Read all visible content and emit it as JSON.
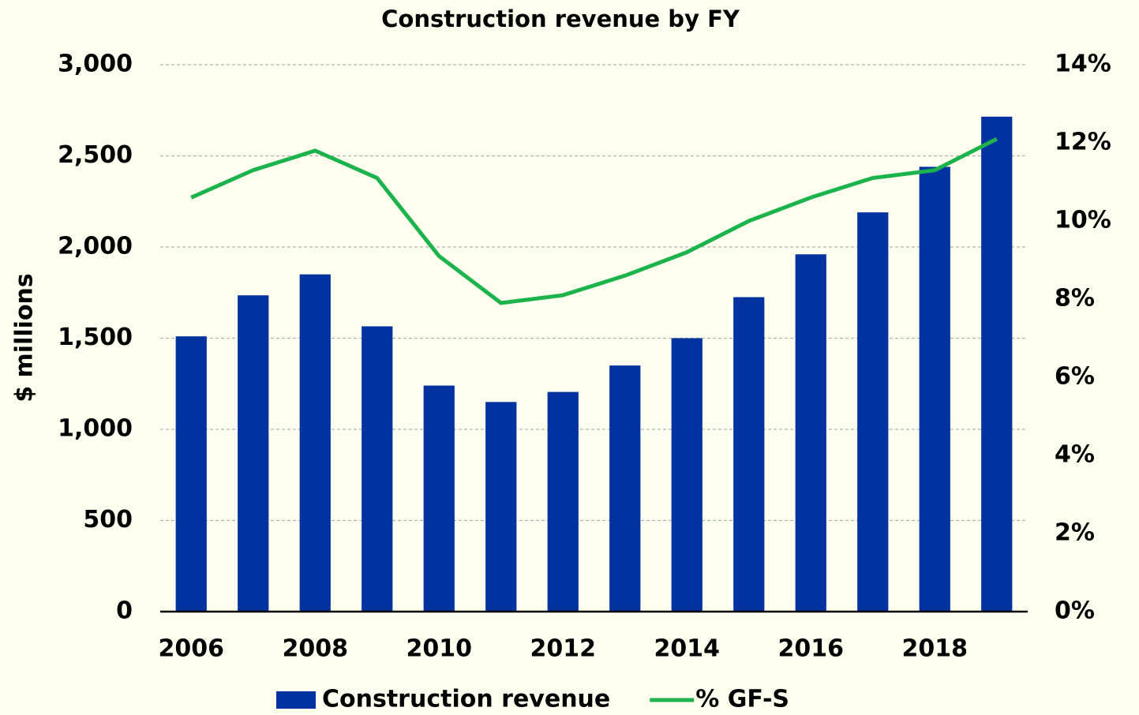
{
  "chart_data": {
    "type": "bar",
    "title": "Construction revenue by FY",
    "y_label": "$ millions",
    "categories": [
      "2006",
      null,
      "2008",
      null,
      "2010",
      null,
      "2012",
      null,
      "2014",
      null,
      "2016",
      null,
      "2018",
      null
    ],
    "series": [
      {
        "name": "Construction revenue",
        "color": "#0033a0",
        "type": "bar",
        "values": [
          1510,
          1735,
          1850,
          1565,
          1240,
          1150,
          1205,
          1350,
          1500,
          1725,
          1960,
          2190,
          2440,
          2715
        ]
      },
      {
        "name": "% GF-S",
        "color": "#1db34c",
        "type": "line",
        "axis": "y2",
        "values": [
          10.6,
          11.3,
          11.8,
          11.1,
          9.1,
          7.9,
          8.1,
          8.6,
          9.2,
          10.0,
          10.6,
          11.1,
          11.3,
          12.1
        ]
      }
    ],
    "ylim": [
      0,
      3000
    ],
    "yticks": [
      0,
      500,
      {
        "value": 1000,
        "label": "1,000"
      },
      {
        "value": 1500,
        "label": "1,500"
      },
      {
        "value": 2000,
        "label": "2,000"
      },
      {
        "value": 2500,
        "label": "2,500"
      },
      {
        "value": 3000,
        "label": "3,000"
      }
    ],
    "y2lim": [
      0,
      14
    ],
    "y2ticks": [
      {
        "value": 0,
        "label": "0%"
      },
      {
        "value": 2,
        "label": "2%"
      },
      {
        "value": 4,
        "label": "4%"
      },
      {
        "value": 6,
        "label": "6%"
      },
      {
        "value": 8,
        "label": "8%"
      },
      {
        "value": 10,
        "label": "10%"
      },
      {
        "value": 12,
        "label": "12%"
      },
      {
        "value": 14,
        "label": "14%"
      }
    ],
    "grid": true,
    "legend": "bottom"
  }
}
